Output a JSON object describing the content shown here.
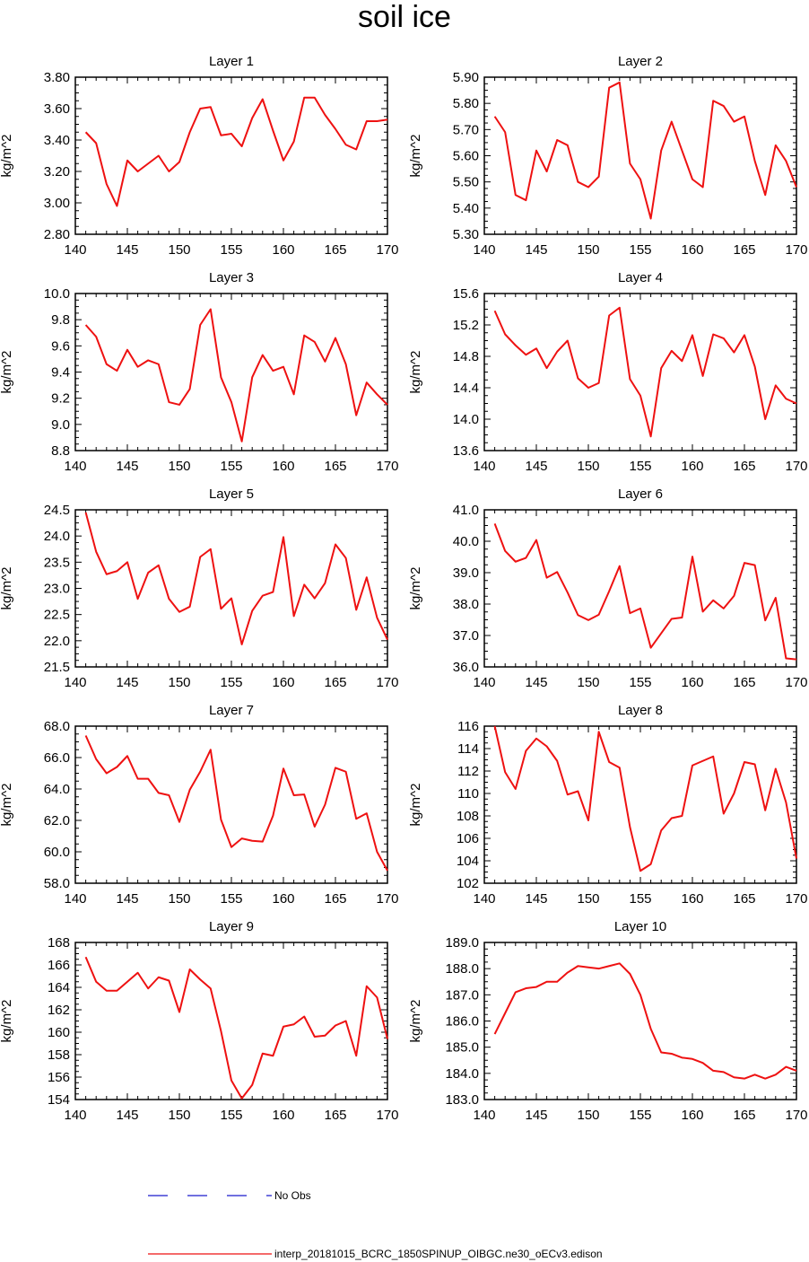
{
  "title": "soil ice",
  "chart_data": {
    "type": "line",
    "ylabel": "kg/m^2",
    "x": [
      141,
      142,
      143,
      144,
      145,
      146,
      147,
      148,
      149,
      150,
      151,
      152,
      153,
      154,
      155,
      156,
      157,
      158,
      159,
      160,
      161,
      162,
      163,
      164,
      165,
      166,
      167,
      168,
      169,
      170
    ],
    "xlim": [
      140,
      170
    ],
    "xticks": [
      140,
      145,
      150,
      155,
      160,
      165,
      170
    ],
    "line_color": "#ee1111",
    "obs_color": "#1a1acc",
    "legend": [
      {
        "label": "No Obs",
        "style": "dashed",
        "color": "#1a1acc"
      },
      {
        "label": "interp_20181015_BCRC_1850SPINUP_OIBGC.ne30_oECv3.edison",
        "style": "solid",
        "color": "#ee1111"
      }
    ],
    "panels": [
      {
        "title": "Layer 1",
        "ylim": [
          2.8,
          3.8
        ],
        "yticks": [
          "2.80",
          "3.00",
          "3.20",
          "3.40",
          "3.60",
          "3.80"
        ],
        "values": [
          3.45,
          3.38,
          3.12,
          2.98,
          3.27,
          3.2,
          3.25,
          3.3,
          3.2,
          3.26,
          3.45,
          3.6,
          3.61,
          3.43,
          3.44,
          3.36,
          3.54,
          3.66,
          3.46,
          3.27,
          3.39,
          3.67,
          3.67,
          3.56,
          3.47,
          3.37,
          3.34,
          3.52,
          3.52,
          3.53
        ]
      },
      {
        "title": "Layer 2",
        "ylim": [
          5.3,
          5.9
        ],
        "yticks": [
          "5.30",
          "5.40",
          "5.50",
          "5.60",
          "5.70",
          "5.80",
          "5.90"
        ],
        "values": [
          5.75,
          5.69,
          5.45,
          5.43,
          5.62,
          5.54,
          5.66,
          5.64,
          5.5,
          5.48,
          5.52,
          5.86,
          5.88,
          5.57,
          5.51,
          5.36,
          5.62,
          5.73,
          5.62,
          5.51,
          5.48,
          5.81,
          5.79,
          5.73,
          5.75,
          5.58,
          5.45,
          5.64,
          5.58,
          5.48
        ]
      },
      {
        "title": "Layer 3",
        "ylim": [
          8.8,
          10.0
        ],
        "yticks": [
          "8.8",
          "9.0",
          "9.2",
          "9.4",
          "9.6",
          "9.8",
          "10.0"
        ],
        "values": [
          9.76,
          9.67,
          9.46,
          9.41,
          9.57,
          9.44,
          9.49,
          9.46,
          9.17,
          9.15,
          9.27,
          9.76,
          9.88,
          9.36,
          9.17,
          8.87,
          9.36,
          9.53,
          9.41,
          9.44,
          9.23,
          9.68,
          9.63,
          9.48,
          9.66,
          9.46,
          9.07,
          9.32,
          9.23,
          9.15
        ]
      },
      {
        "title": "Layer 4",
        "ylim": [
          13.6,
          15.6
        ],
        "yticks": [
          "13.6",
          "14.0",
          "14.4",
          "14.8",
          "15.2",
          "15.6"
        ],
        "values": [
          15.38,
          15.08,
          14.94,
          14.82,
          14.9,
          14.65,
          14.86,
          15.0,
          14.52,
          14.4,
          14.46,
          15.32,
          15.42,
          14.51,
          14.3,
          13.78,
          14.65,
          14.87,
          14.74,
          15.07,
          14.55,
          15.08,
          15.03,
          14.85,
          15.07,
          14.67,
          14.0,
          14.43,
          14.26,
          14.2
        ]
      },
      {
        "title": "Layer 5",
        "ylim": [
          21.5,
          24.5
        ],
        "yticks": [
          "21.5",
          "22.0",
          "22.5",
          "23.0",
          "23.5",
          "24.0",
          "24.5"
        ],
        "values": [
          24.45,
          23.7,
          23.27,
          23.33,
          23.5,
          22.8,
          23.3,
          23.44,
          22.8,
          22.55,
          22.65,
          23.6,
          23.75,
          22.61,
          22.81,
          21.93,
          22.57,
          22.86,
          22.93,
          23.98,
          22.47,
          23.07,
          22.81,
          23.1,
          23.84,
          23.58,
          22.59,
          23.21,
          22.44,
          22.02
        ]
      },
      {
        "title": "Layer 6",
        "ylim": [
          36.0,
          41.0
        ],
        "yticks": [
          "36.0",
          "37.0",
          "38.0",
          "39.0",
          "40.0",
          "41.0"
        ],
        "values": [
          40.56,
          39.69,
          39.35,
          39.47,
          40.04,
          38.84,
          39.02,
          38.37,
          37.65,
          37.49,
          37.66,
          38.41,
          39.21,
          37.71,
          37.86,
          36.61,
          37.07,
          37.53,
          37.57,
          39.51,
          37.76,
          38.12,
          37.86,
          38.26,
          39.31,
          39.24,
          37.48,
          38.2,
          36.27,
          36.24
        ]
      },
      {
        "title": "Layer 7",
        "ylim": [
          58.0,
          68.0
        ],
        "yticks": [
          "58.0",
          "60.0",
          "62.0",
          "64.0",
          "66.0",
          "68.0"
        ],
        "values": [
          67.4,
          65.9,
          65.0,
          65.4,
          66.1,
          64.65,
          64.65,
          63.75,
          63.6,
          61.9,
          63.95,
          65.1,
          66.5,
          62.05,
          60.3,
          60.85,
          60.7,
          60.65,
          62.3,
          65.3,
          63.6,
          63.65,
          61.6,
          63.0,
          65.35,
          65.1,
          62.1,
          62.45,
          60.0,
          58.8
        ]
      },
      {
        "title": "Layer 8",
        "ylim": [
          102,
          116
        ],
        "yticks": [
          "102",
          "104",
          "106",
          "108",
          "110",
          "112",
          "114",
          "116"
        ],
        "values": [
          116.0,
          111.9,
          110.4,
          113.8,
          114.9,
          114.2,
          112.9,
          109.9,
          110.2,
          107.6,
          115.5,
          112.8,
          112.3,
          107.0,
          103.1,
          103.7,
          106.7,
          107.8,
          108.0,
          112.5,
          112.9,
          113.3,
          108.2,
          110.0,
          112.8,
          112.6,
          108.5,
          112.2,
          109.2,
          104.2
        ]
      },
      {
        "title": "Layer 9",
        "ylim": [
          154,
          168
        ],
        "yticks": [
          "154",
          "156",
          "158",
          "160",
          "162",
          "164",
          "166",
          "168"
        ],
        "values": [
          166.7,
          164.5,
          163.7,
          163.7,
          164.5,
          165.3,
          163.9,
          164.9,
          164.6,
          161.8,
          165.6,
          164.7,
          163.9,
          160.1,
          155.7,
          154.1,
          155.3,
          158.1,
          157.9,
          160.5,
          160.7,
          161.4,
          159.6,
          159.7,
          160.6,
          161.0,
          157.9,
          164.1,
          163.1,
          159.4
        ]
      },
      {
        "title": "Layer 10",
        "ylim": [
          183.0,
          189.0
        ],
        "yticks": [
          "183.0",
          "184.0",
          "185.0",
          "186.0",
          "187.0",
          "188.0",
          "189.0"
        ],
        "values": [
          185.5,
          186.3,
          187.1,
          187.25,
          187.3,
          187.5,
          187.5,
          187.85,
          188.1,
          188.05,
          188.0,
          188.1,
          188.2,
          187.8,
          187.0,
          185.7,
          184.8,
          184.75,
          184.6,
          184.55,
          184.4,
          184.1,
          184.05,
          183.85,
          183.8,
          183.95,
          183.8,
          183.95,
          184.25,
          184.1
        ]
      }
    ]
  }
}
